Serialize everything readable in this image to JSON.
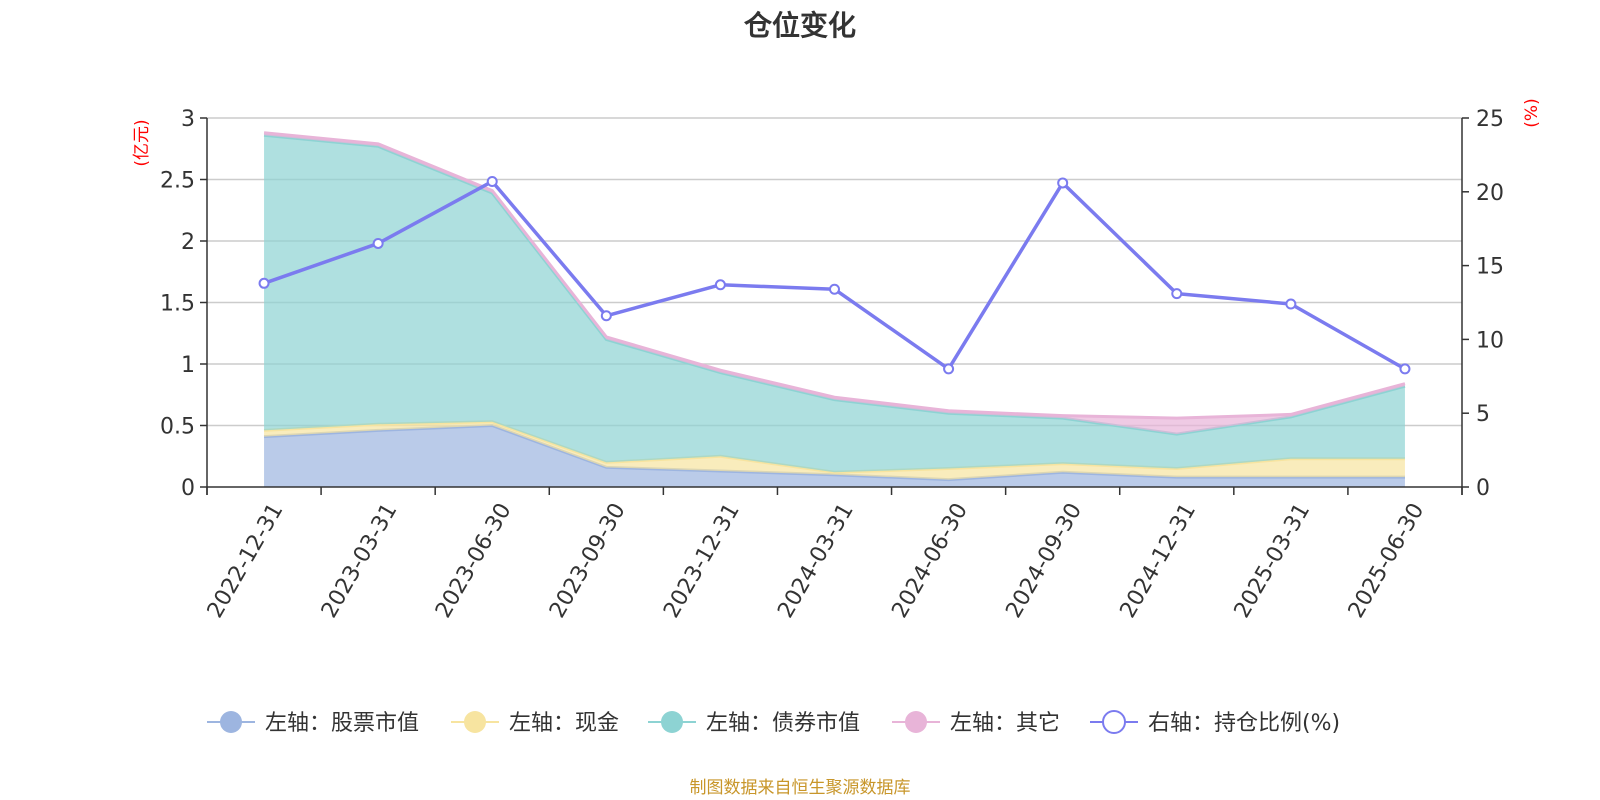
{
  "title": "仓位变化",
  "footer": "制图数据来自恒生聚源数据库",
  "chart_data": {
    "type": "area",
    "categories": [
      "2022-12-31",
      "2023-03-31",
      "2023-06-30",
      "2023-09-30",
      "2023-12-31",
      "2024-03-31",
      "2024-06-30",
      "2024-09-30",
      "2024-12-31",
      "2025-03-31",
      "2025-06-30"
    ],
    "left_axis": {
      "label": "(亿元)",
      "range": [
        0,
        3
      ],
      "ticks": [
        "0",
        "0.5",
        "1",
        "1.5",
        "2",
        "2.5",
        "3"
      ]
    },
    "right_axis": {
      "label": "(%)",
      "range": [
        0,
        25
      ],
      "ticks": [
        "0",
        "5",
        "10",
        "15",
        "20",
        "25"
      ]
    },
    "grid": true,
    "legend_position": "bottom",
    "series": [
      {
        "name": "左轴：股票市值",
        "axis": "left",
        "stacked": true,
        "color": "#9db5e0",
        "values": [
          0.41,
          0.46,
          0.5,
          0.16,
          0.13,
          0.1,
          0.06,
          0.12,
          0.08,
          0.08,
          0.08
        ]
      },
      {
        "name": "左轴：现金",
        "axis": "left",
        "stacked": true,
        "color": "#f7e4a0",
        "values": [
          0.05,
          0.05,
          0.03,
          0.04,
          0.12,
          0.02,
          0.09,
          0.07,
          0.07,
          0.15,
          0.15
        ]
      },
      {
        "name": "左轴：债券市值",
        "axis": "left",
        "stacked": true,
        "color": "#8dd3d3",
        "values": [
          2.4,
          2.26,
          1.86,
          1.0,
          0.68,
          0.59,
          0.45,
          0.37,
          0.28,
          0.34,
          0.59
        ]
      },
      {
        "name": "左轴：其它",
        "axis": "left",
        "stacked": true,
        "color": "#e8b4d8",
        "values": [
          0.02,
          0.02,
          0.02,
          0.02,
          0.02,
          0.02,
          0.02,
          0.02,
          0.13,
          0.02,
          0.02
        ]
      },
      {
        "name": "右轴：持仓比例(%)",
        "axis": "right",
        "stacked": false,
        "color": "#7b7bef",
        "values": [
          13.8,
          16.5,
          20.7,
          11.6,
          13.7,
          13.4,
          8.0,
          20.6,
          13.1,
          12.4,
          8.0
        ]
      }
    ]
  }
}
